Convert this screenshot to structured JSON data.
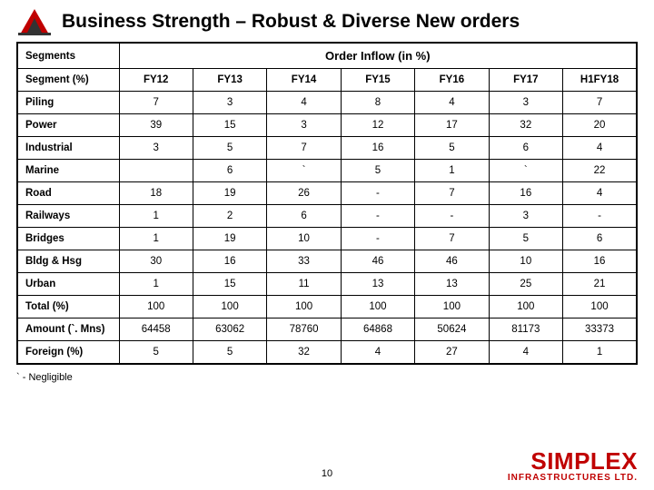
{
  "title": "Business Strength – Robust & Diverse New orders",
  "segments_label": "Segments",
  "inflow_label": "Order Inflow (in %)",
  "segment_pct_label": "Segment (%)",
  "columns": [
    "FY12",
    "FY13",
    "FY14",
    "FY15",
    "FY16",
    "FY17",
    "H1FY18"
  ],
  "rows": [
    {
      "label": "Piling",
      "vals": [
        "7",
        "3",
        "4",
        "8",
        "4",
        "3",
        "7"
      ]
    },
    {
      "label": "Power",
      "vals": [
        "39",
        "15",
        "3",
        "12",
        "17",
        "32",
        "20"
      ]
    },
    {
      "label": "Industrial",
      "vals": [
        "3",
        "5",
        "7",
        "16",
        "5",
        "6",
        "4"
      ]
    },
    {
      "label": "Marine",
      "vals": [
        "",
        "6",
        "`",
        "5",
        "1",
        "`",
        "22"
      ]
    },
    {
      "label": "Road",
      "vals": [
        "18",
        "19",
        "26",
        "-",
        "7",
        "16",
        "4"
      ]
    },
    {
      "label": "Railways",
      "vals": [
        "1",
        "2",
        "6",
        "-",
        "-",
        "3",
        "-"
      ]
    },
    {
      "label": "Bridges",
      "vals": [
        "1",
        "19",
        "10",
        "-",
        "7",
        "5",
        "6"
      ]
    },
    {
      "label": "Bldg & Hsg",
      "vals": [
        "30",
        "16",
        "33",
        "46",
        "46",
        "10",
        "16"
      ]
    },
    {
      "label": "Urban",
      "vals": [
        "1",
        "15",
        "11",
        "13",
        "13",
        "25",
        "21"
      ]
    },
    {
      "label": "Total (%)",
      "vals": [
        "100",
        "100",
        "100",
        "100",
        "100",
        "100",
        "100"
      ]
    },
    {
      "label": "Amount (`. Mns)",
      "vals": [
        "64458",
        "63062",
        "78760",
        "64868",
        "50624",
        "81173",
        "33373"
      ]
    },
    {
      "label": "Foreign (%)",
      "vals": [
        "5",
        "5",
        "32",
        "4",
        "27",
        "4",
        "1"
      ]
    }
  ],
  "footnote": "` - Negligible",
  "page_number": "10",
  "brand_main": "SIMPLEX",
  "brand_sub": "INFRASTRUCTURES LTD.",
  "colors": {
    "brand": "#c00000",
    "border": "#000000",
    "background": "#ffffff"
  }
}
